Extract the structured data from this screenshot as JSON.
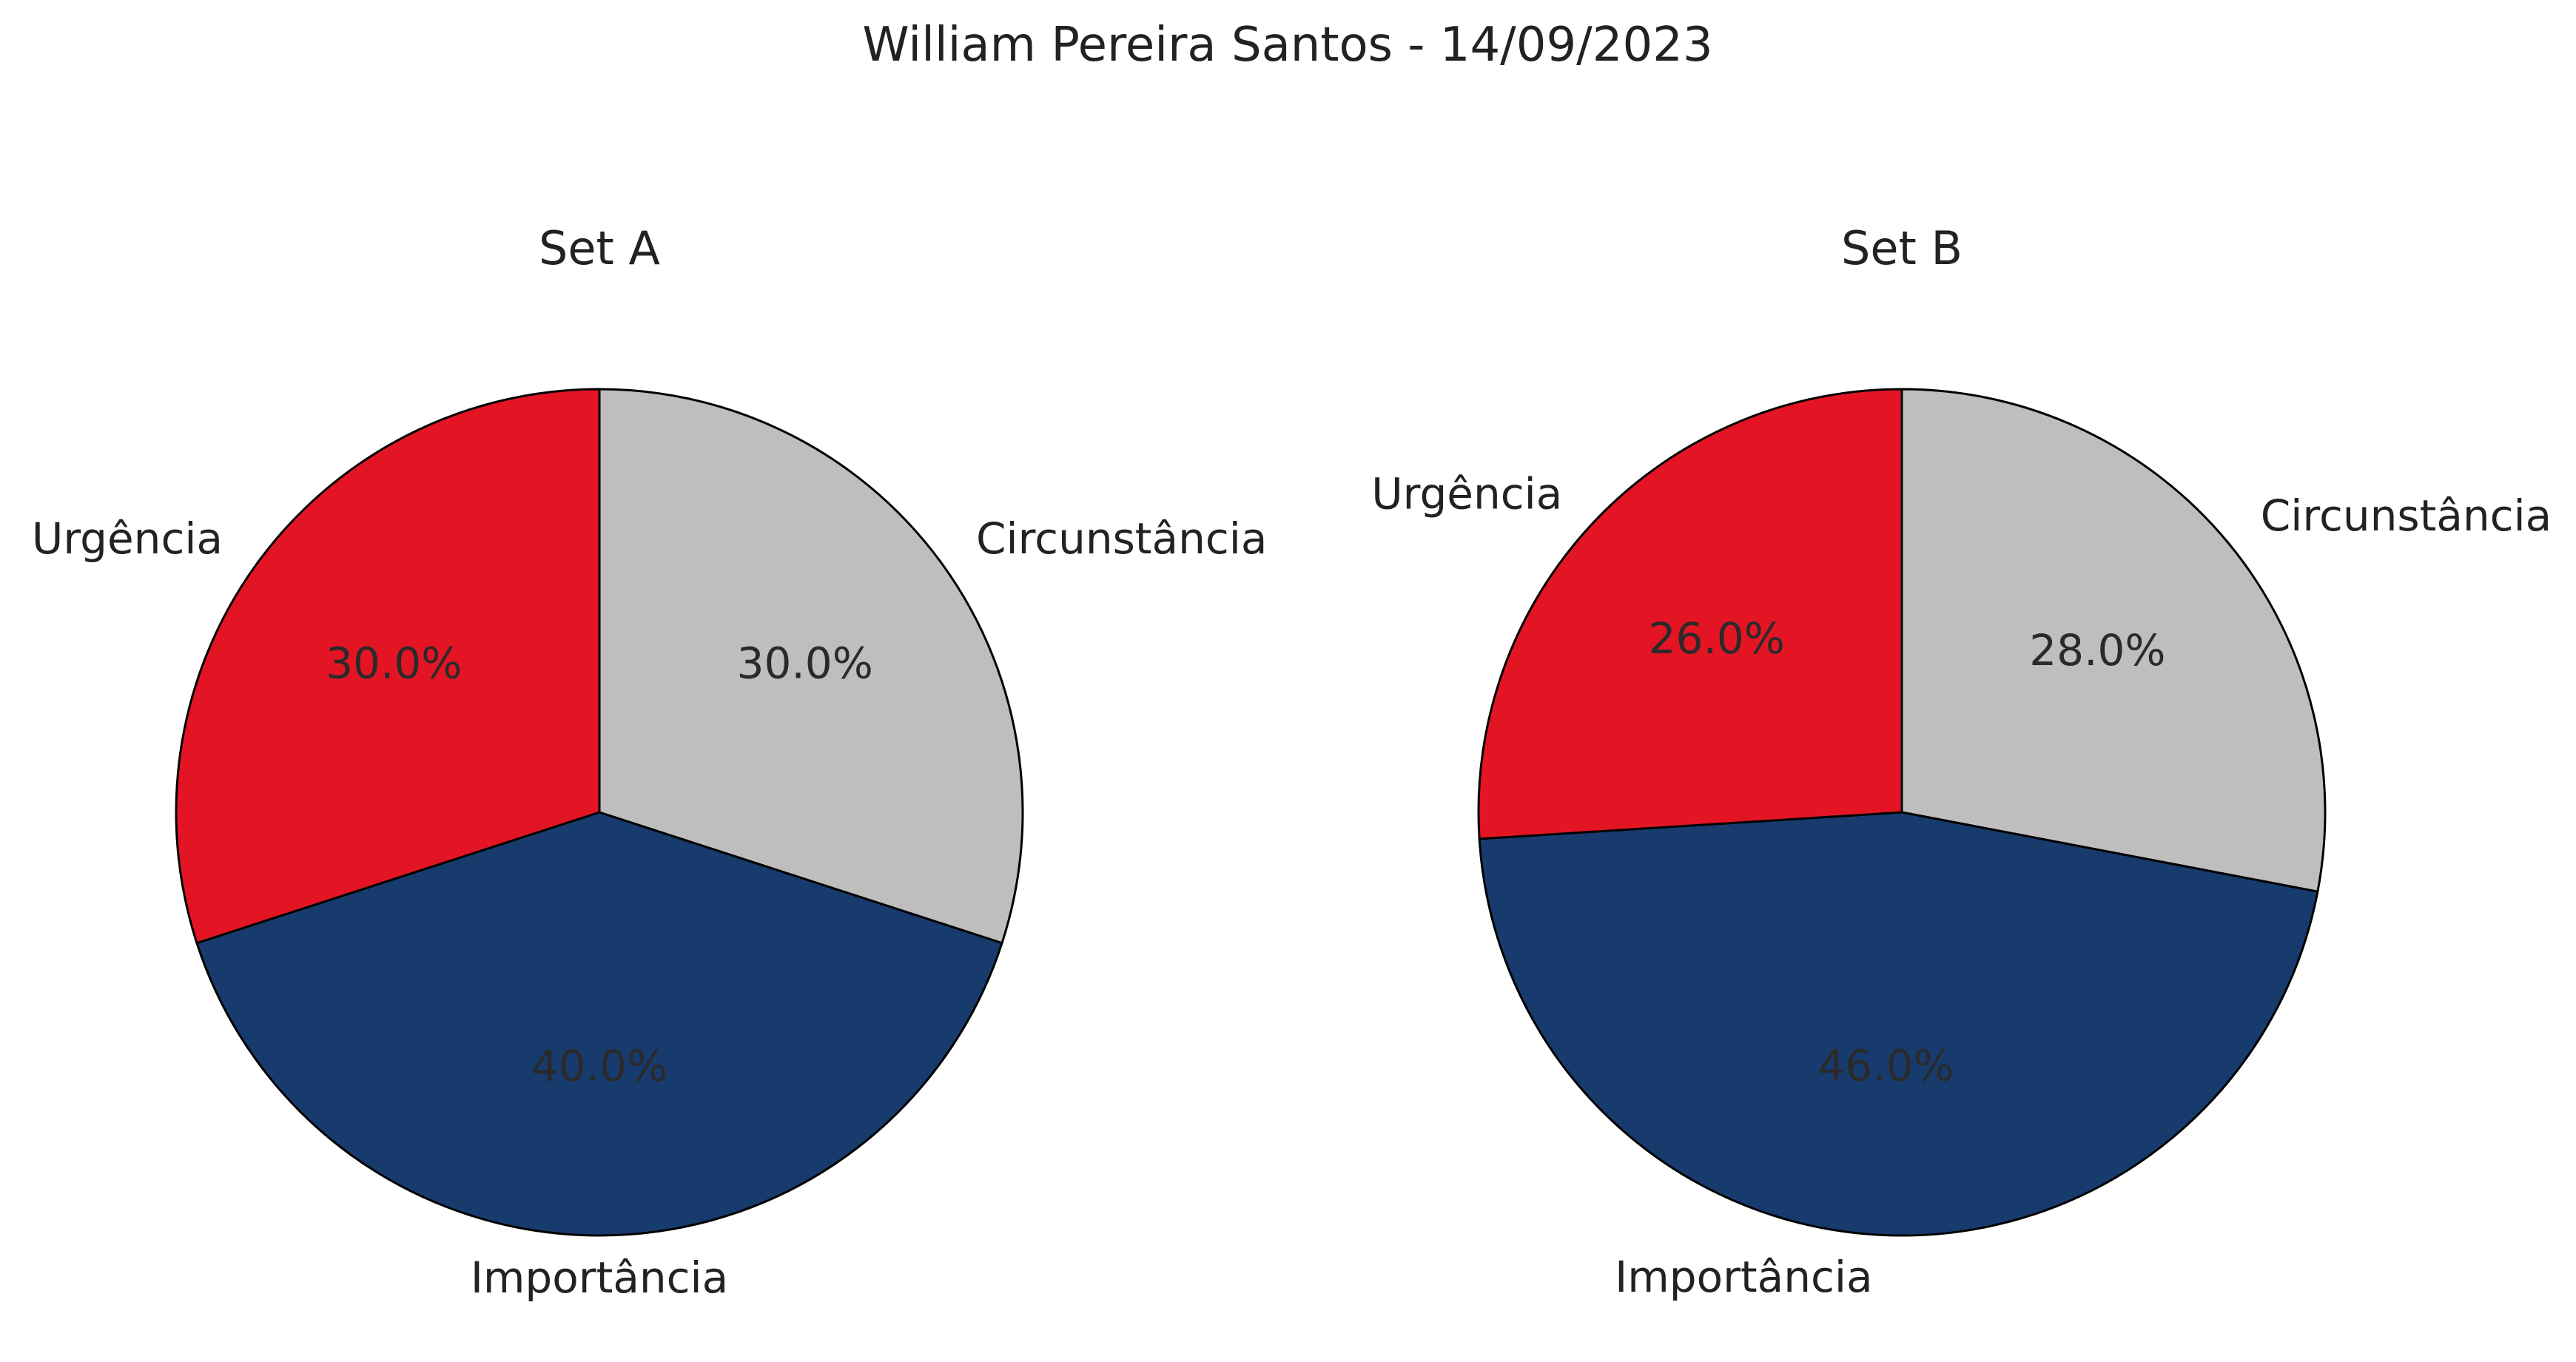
{
  "title": "William Pereira Santos - 14/09/2023",
  "colors": {
    "Urgência": "#e31524",
    "Circunstância": "#bdbebd",
    "Importância": "#183b6e"
  },
  "chart_data": [
    {
      "type": "pie",
      "title": "Set A",
      "categories": [
        "Circunstância",
        "Importância",
        "Urgência"
      ],
      "values": [
        30.0,
        40.0,
        30.0
      ],
      "value_labels": [
        "30.0%",
        "40.0%",
        "30.0%"
      ],
      "start_angle": "top",
      "direction": "clockwise"
    },
    {
      "type": "pie",
      "title": "Set B",
      "categories": [
        "Circunstância",
        "Importância",
        "Urgência"
      ],
      "values": [
        28.0,
        46.0,
        26.0
      ],
      "value_labels": [
        "28.0%",
        "46.0%",
        "26.0%"
      ],
      "start_angle": "top",
      "direction": "clockwise"
    }
  ]
}
